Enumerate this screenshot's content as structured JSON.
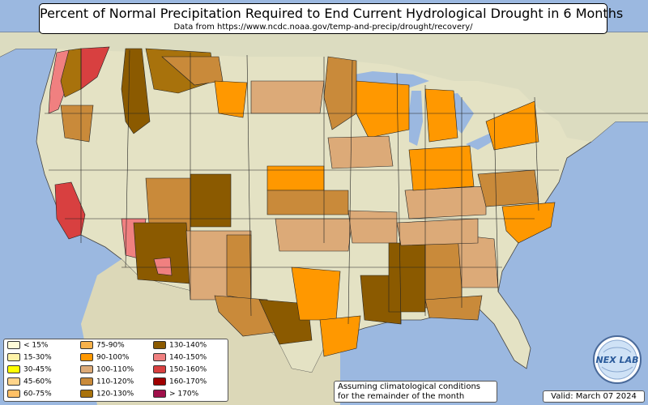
{
  "title": "Percent of Normal Precipitation Required to End Current Hydrological Drought in 6 Months",
  "subtitle": "Data from https://www.ncdc.noaa.gov/temp-and-precip/drought/recovery/",
  "legend": [
    {
      "label": "< 15%",
      "color": "#fffbd8"
    },
    {
      "label": "15-30%",
      "color": "#fff3a8"
    },
    {
      "label": "30-45%",
      "color": "#ffff00"
    },
    {
      "label": "45-60%",
      "color": "#ffd48a"
    },
    {
      "label": "60-75%",
      "color": "#ffc066"
    },
    {
      "label": "75-90%",
      "color": "#f7b14a"
    },
    {
      "label": "90-100%",
      "color": "#ff9800"
    },
    {
      "label": "100-110%",
      "color": "#dcaa78"
    },
    {
      "label": "110-120%",
      "color": "#c98a3a"
    },
    {
      "label": "120-130%",
      "color": "#a8720c"
    },
    {
      "label": "130-140%",
      "color": "#8b5a00"
    },
    {
      "label": "140-150%",
      "color": "#f08080"
    },
    {
      "label": "150-160%",
      "color": "#d84040"
    },
    {
      "label": "160-170%",
      "color": "#a00000"
    },
    {
      "label": "> 170%",
      "color": "#a0104a"
    }
  ],
  "note_line1": "Assuming climatological conditions",
  "note_line2": "for the remainder of the month",
  "valid": "Valid: March 07 2024",
  "logo_text": "NEX LAB",
  "colors": {
    "ocean": "#9bb8e0",
    "land": "#e4e2c4",
    "border": "#222222"
  }
}
